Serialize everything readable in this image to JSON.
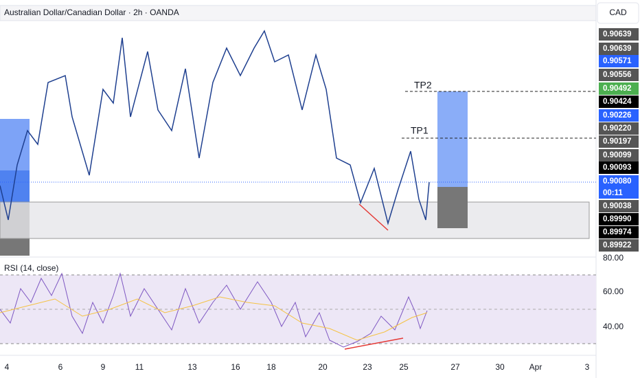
{
  "header": {
    "title": "Australian Dollar/Canadian Dollar · 2h · OANDA",
    "currency": "CAD"
  },
  "annotations": {
    "tp1": "TP1",
    "tp2": "TP2"
  },
  "rsi": {
    "title": "RSI (14, close)"
  },
  "price_axis": {
    "labels": [
      "0.90639",
      "0.90639",
      "0.90571",
      "0.90556",
      "0.90492",
      "0.90424",
      "0.90226",
      "0.90220",
      "0.90197",
      "0.90099",
      "0.90093",
      "0.90080",
      "0.90038",
      "0.89990",
      "0.89974",
      "0.89922"
    ],
    "countdown": "00:11"
  },
  "rsi_axis": {
    "labels": [
      "80.00",
      "60.00",
      "40.00"
    ]
  },
  "time_axis": {
    "labels": [
      "4",
      "6",
      "9",
      "11",
      "13",
      "16",
      "18",
      "20",
      "23",
      "25",
      "27",
      "30",
      "Apr",
      "3"
    ]
  }
}
